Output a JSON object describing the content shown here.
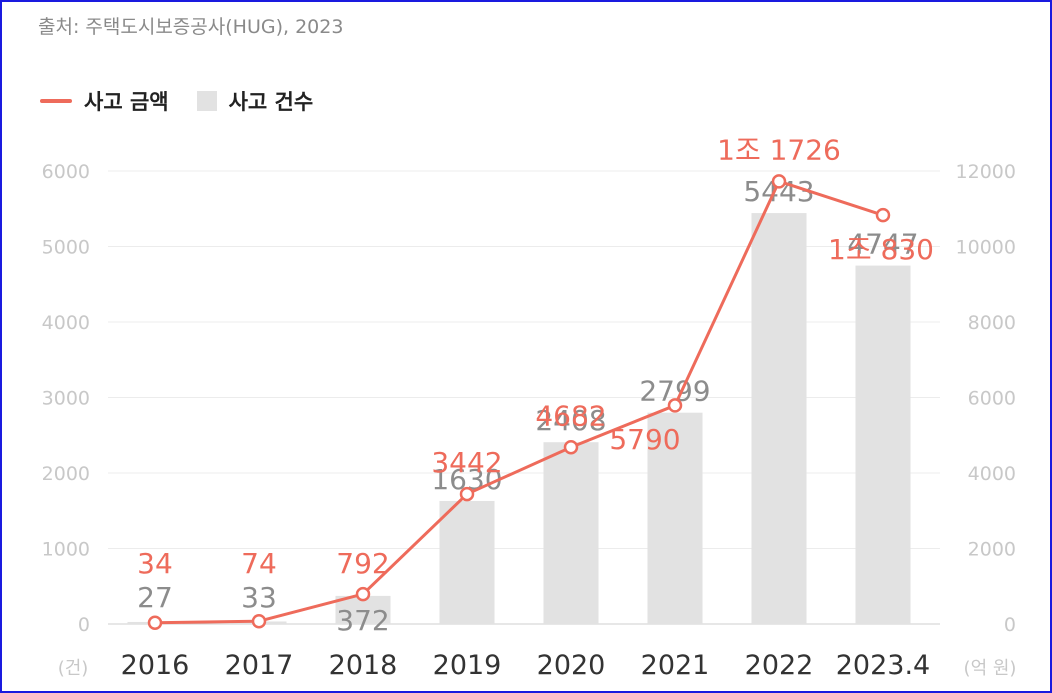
{
  "source": "출처: 주택도시보증공사(HUG), 2023",
  "colors": {
    "line": "#ee6b5b",
    "bar": "#e2e2e2",
    "axis_text": "#c8c8c8",
    "grid": "#ececec",
    "bar_label": "#8c8c8c",
    "x_label": "#333333"
  },
  "legend": [
    {
      "label": "사고 금액",
      "kind": "line"
    },
    {
      "label": "사고 건수",
      "kind": "bar"
    }
  ],
  "chart_data": {
    "type": "bar",
    "categories": [
      "2016",
      "2017",
      "2018",
      "2019",
      "2020",
      "2021",
      "2022",
      "2023.4"
    ],
    "series": [
      {
        "name": "사고 건수",
        "type": "bar",
        "axis": "left",
        "values": [
          27,
          33,
          372,
          1630,
          2408,
          2799,
          5443,
          4747
        ],
        "labels": [
          "27",
          "33",
          "372",
          "1630",
          "2408",
          "2799",
          "5443",
          "4747"
        ]
      },
      {
        "name": "사고 금액",
        "type": "line",
        "axis": "right",
        "values": [
          34,
          74,
          792,
          3442,
          4682,
          5790,
          11726,
          10830
        ],
        "labels": [
          "34",
          "74",
          "792",
          "3442",
          "4682",
          "5790",
          "1조 1726",
          "1조 830"
        ]
      }
    ],
    "y_left": {
      "label": "(건)",
      "ticks": [
        "0",
        "1000",
        "2000",
        "3000",
        "4000",
        "5000",
        "6000"
      ],
      "range": [
        0,
        6000
      ]
    },
    "y_right": {
      "label": "(억 원)",
      "ticks": [
        "0",
        "2000",
        "4000",
        "6000",
        "8000",
        "10000",
        "12000"
      ],
      "range": [
        0,
        12000
      ]
    },
    "grid": true,
    "legend_position": "top-left"
  }
}
